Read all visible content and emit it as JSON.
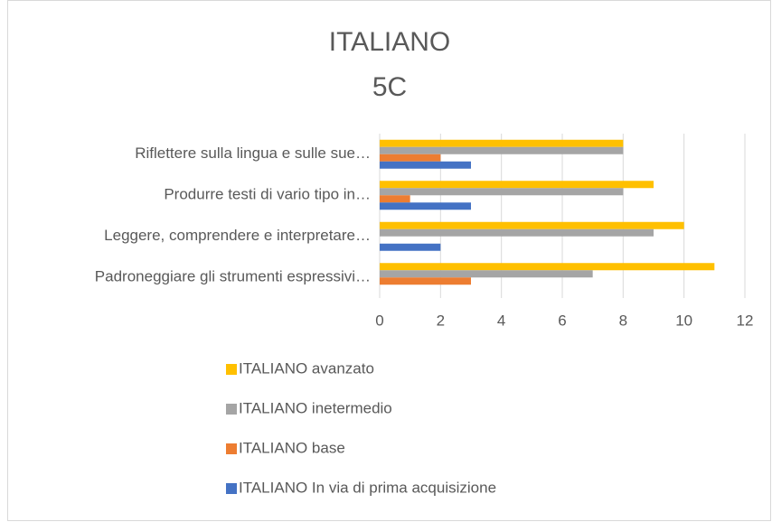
{
  "chart_data": {
    "type": "bar",
    "orientation": "horizontal",
    "title": [
      "ITALIANO",
      "5C"
    ],
    "categories": [
      "Riflettere sulla lingua e sulle sue…",
      "Produrre testi di vario tipo in…",
      "Leggere, comprendere e interpretare…",
      "Padroneggiare gli strumenti espressivi…"
    ],
    "series": [
      {
        "name": "ITALIANO avanzato",
        "color": "#ffc000",
        "values": [
          8,
          9,
          10,
          11
        ]
      },
      {
        "name": "ITALIANO inetermedio",
        "color": "#a5a5a5",
        "values": [
          8,
          8,
          9,
          7
        ]
      },
      {
        "name": "ITALIANO base",
        "color": "#ed7d31",
        "values": [
          2,
          1,
          0,
          3
        ]
      },
      {
        "name": "ITALIANO In via di prima acquisizione",
        "color": "#4472c4",
        "values": [
          3,
          3,
          2,
          0
        ]
      }
    ],
    "xlim": [
      0,
      12
    ],
    "xticks": [
      0,
      2,
      4,
      6,
      8,
      10,
      12
    ],
    "grid": true,
    "legend": "bottom"
  }
}
